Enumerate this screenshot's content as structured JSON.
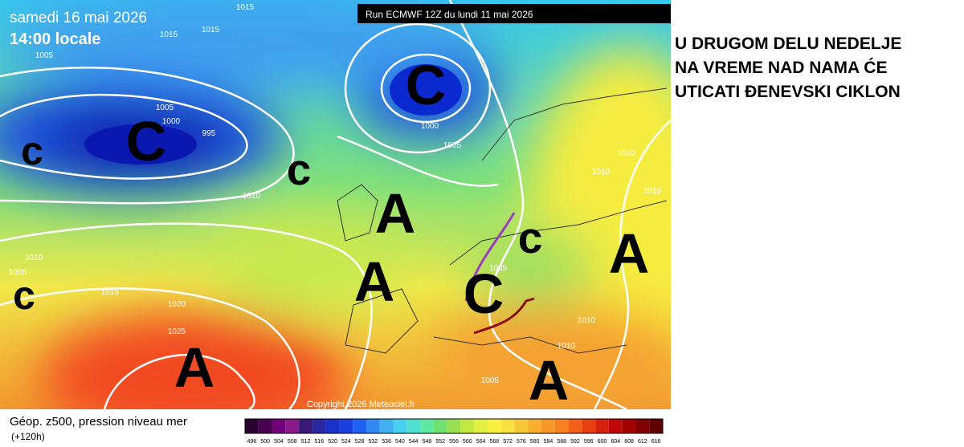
{
  "header": {
    "date": "samedi 16 mai 2026",
    "time": "14:00 locale",
    "run": "Run ECMWF 12Z du lundi 11 mai 2026"
  },
  "map": {
    "copyright": "Copyright 2026 Meteociel.fr",
    "systems": [
      "c",
      "C",
      "c",
      "C",
      "A",
      "A",
      "c",
      "C",
      "A",
      "A",
      "A",
      "c"
    ],
    "isobars": [
      "1015",
      "1015",
      "1015",
      "1005",
      "1005",
      "1000",
      "995",
      "1000",
      "1005",
      "1010",
      "1010",
      "1010",
      "1010",
      "1015",
      "1020",
      "1025",
      "1005",
      "1010",
      "1010",
      "1005",
      "1010",
      "1005"
    ]
  },
  "legend": {
    "title": "Géop. z500, pression niveau mer",
    "lead": "(+120h)",
    "labels": [
      "496",
      "500",
      "504",
      "508",
      "512",
      "516",
      "520",
      "524",
      "528",
      "532",
      "536",
      "540",
      "544",
      "548",
      "552",
      "556",
      "560",
      "564",
      "568",
      "572",
      "576",
      "580",
      "584",
      "588",
      "592",
      "596",
      "600",
      "604",
      "608",
      "612",
      "616"
    ]
  },
  "note": {
    "lines": [
      "U DRUGOM DELU NEDELJE",
      "NA VREME NAD NAMA ĆE",
      "UTICATI ĐENEVSKI CIKLON"
    ]
  }
}
